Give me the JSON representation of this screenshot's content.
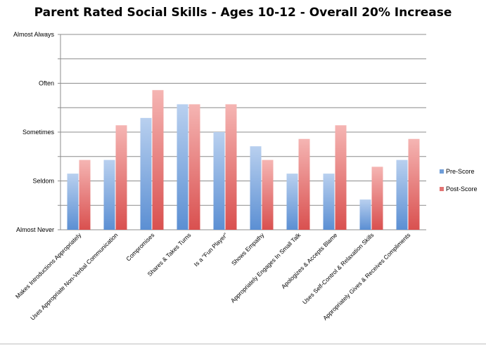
{
  "chart_data": {
    "type": "bar",
    "title": "Parent Rated Social Skills - Ages 10-12 - Overall 20% Increase",
    "y_tick_labels": [
      "Almost Never",
      "Seldom",
      "Sometimes",
      "Often",
      "Almost Always"
    ],
    "ylim": [
      1,
      5
    ],
    "grid": "horizontal",
    "legend_position": "right",
    "categories": [
      "Makes Introductions Appropriately",
      "Uses Appropriate Non-Verbal Communication",
      "Compromises",
      "Shares & Takes Turns",
      "Is a \"Fun Player\"",
      "Shows Empathy",
      "Appropriately Engages In Small Talk",
      "Apologizes & Accepts Blame",
      "Uses Self-Control & Relaxation Skills",
      "Appropriately Gives & Receives Compliments"
    ],
    "series": [
      {
        "name": "Pre-Score",
        "values": [
          2.15,
          2.43,
          3.29,
          3.57,
          3.0,
          2.71,
          2.15,
          2.15,
          1.62,
          2.43
        ],
        "color": "#6f9ed9"
      },
      {
        "name": "Post-Score",
        "values": [
          2.43,
          3.14,
          3.86,
          3.57,
          3.57,
          2.43,
          2.86,
          3.14,
          2.29,
          2.86
        ],
        "color": "#e27473"
      }
    ]
  }
}
